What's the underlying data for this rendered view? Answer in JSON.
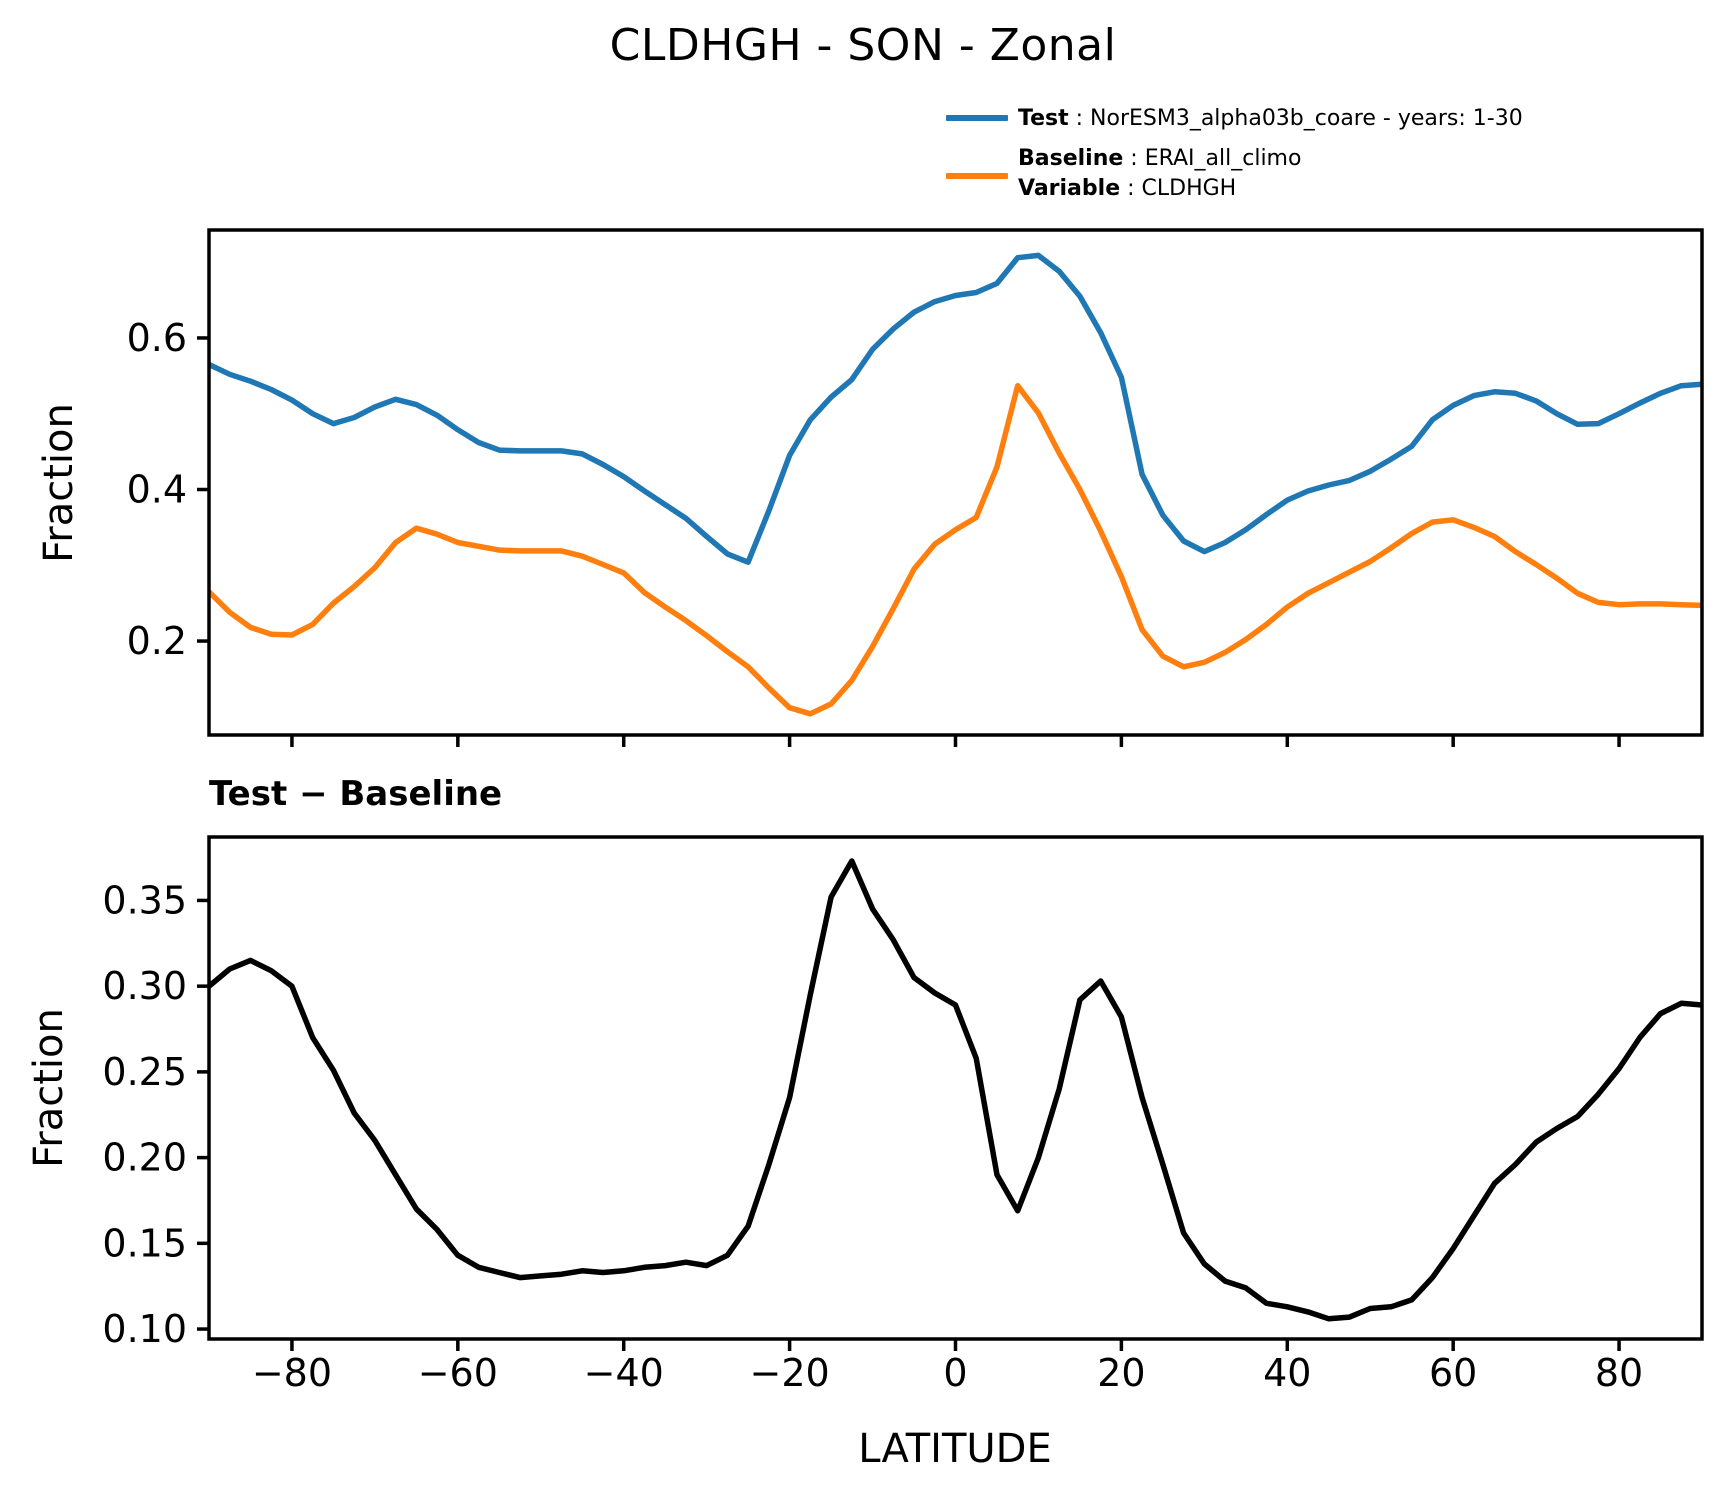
{
  "title": "CLDHGH - SON - Zonal",
  "subtitle": "Test − Baseline",
  "colors": {
    "test": "#1f77b4",
    "baseline": "#ff7f0e",
    "diff": "#000000"
  },
  "legend": {
    "test_label": "Test",
    "test_value": " : NorESM3_alpha03b_coare - years: 1-30",
    "baseline_label": "Baseline",
    "baseline_value": " : ERAI_all_climo",
    "variable_label": "Variable",
    "variable_value": " : CLDHGH"
  },
  "chart_data": [
    {
      "type": "line",
      "title": "CLDHGH - SON - Zonal",
      "xlabel": "",
      "ylabel": "Fraction",
      "xlim": [
        -90,
        90
      ],
      "ylim": [
        0.076,
        0.7425
      ],
      "grid": false,
      "legend_position": "top-right-figure",
      "yticks": [
        0.2,
        0.4,
        0.6
      ],
      "ytick_labels": [
        "0.2",
        "0.4",
        "0.6"
      ],
      "xticks": [
        -80,
        -60,
        -40,
        -20,
        0,
        20,
        40,
        60,
        80
      ],
      "xtick_labels": [],
      "x": [
        -90,
        -87.5,
        -85,
        -82.5,
        -80,
        -77.5,
        -75,
        -72.5,
        -70,
        -67.5,
        -65,
        -62.5,
        -60,
        -57.5,
        -55,
        -52.5,
        -50,
        -47.5,
        -45,
        -42.5,
        -40,
        -37.5,
        -35,
        -32.5,
        -30,
        -27.5,
        -25,
        -22.5,
        -20,
        -17.5,
        -15,
        -12.5,
        -10,
        -7.5,
        -5,
        -2.5,
        0,
        2.5,
        5,
        7.5,
        10,
        12.5,
        15,
        17.5,
        20,
        22.5,
        25,
        27.5,
        30,
        32.5,
        35,
        37.5,
        40,
        42.5,
        45,
        47.5,
        50,
        52.5,
        55,
        57.5,
        60,
        62.5,
        65,
        67.5,
        70,
        72.5,
        75,
        77.5,
        80,
        82.5,
        85,
        87.5,
        90
      ],
      "series": [
        {
          "name": "Test : NorESM3_alpha03b_coare - years: 1-30",
          "color": "#1f77b4",
          "values": [
            0.565,
            0.552,
            0.543,
            0.532,
            0.518,
            0.5,
            0.487,
            0.495,
            0.509,
            0.519,
            0.512,
            0.498,
            0.479,
            0.462,
            0.452,
            0.451,
            0.451,
            0.451,
            0.447,
            0.433,
            0.417,
            0.398,
            0.38,
            0.362,
            0.338,
            0.315,
            0.304,
            0.372,
            0.445,
            0.492,
            0.522,
            0.545,
            0.585,
            0.612,
            0.634,
            0.648,
            0.656,
            0.66,
            0.672,
            0.706,
            0.709,
            0.688,
            0.655,
            0.607,
            0.548,
            0.42,
            0.366,
            0.332,
            0.318,
            0.33,
            0.347,
            0.367,
            0.386,
            0.398,
            0.406,
            0.412,
            0.424,
            0.44,
            0.457,
            0.492,
            0.511,
            0.524,
            0.529,
            0.527,
            0.517,
            0.5,
            0.486,
            0.487,
            0.5,
            0.514,
            0.527,
            0.537,
            0.539
          ]
        },
        {
          "name": "Baseline : ERAI_all_climo  Variable : CLDHGH",
          "color": "#ff7f0e",
          "values": [
            0.265,
            0.238,
            0.218,
            0.209,
            0.208,
            0.222,
            0.25,
            0.272,
            0.297,
            0.33,
            0.349,
            0.341,
            0.33,
            0.325,
            0.32,
            0.319,
            0.319,
            0.319,
            0.312,
            0.301,
            0.29,
            0.264,
            0.245,
            0.227,
            0.207,
            0.186,
            0.166,
            0.138,
            0.112,
            0.104,
            0.117,
            0.148,
            0.193,
            0.243,
            0.295,
            0.328,
            0.347,
            0.363,
            0.43,
            0.537,
            0.501,
            0.448,
            0.4,
            0.345,
            0.285,
            0.215,
            0.18,
            0.166,
            0.172,
            0.185,
            0.202,
            0.222,
            0.245,
            0.263,
            0.277,
            0.291,
            0.305,
            0.323,
            0.342,
            0.357,
            0.36,
            0.35,
            0.338,
            0.318,
            0.301,
            0.283,
            0.263,
            0.251,
            0.248,
            0.249,
            0.249,
            0.248,
            0.247
          ]
        }
      ]
    },
    {
      "type": "line",
      "title": "Test − Baseline",
      "xlabel": "LATITUDE",
      "ylabel": "Fraction",
      "xlim": [
        -90,
        90
      ],
      "ylim": [
        0.0942,
        0.387
      ],
      "grid": false,
      "yticks": [
        0.1,
        0.15,
        0.2,
        0.25,
        0.3,
        0.35
      ],
      "ytick_labels": [
        "0.10",
        "0.15",
        "0.20",
        "0.25",
        "0.30",
        "0.35"
      ],
      "xticks": [
        -80,
        -60,
        -40,
        -20,
        0,
        20,
        40,
        60,
        80
      ],
      "xtick_labels": [
        "−80",
        "−60",
        "−40",
        "−20",
        "0",
        "20",
        "40",
        "60",
        "80"
      ],
      "x": [
        -90,
        -87.5,
        -85,
        -82.5,
        -80,
        -77.5,
        -75,
        -72.5,
        -70,
        -67.5,
        -65,
        -62.5,
        -60,
        -57.5,
        -55,
        -52.5,
        -50,
        -47.5,
        -45,
        -42.5,
        -40,
        -37.5,
        -35,
        -32.5,
        -30,
        -27.5,
        -25,
        -22.5,
        -20,
        -17.5,
        -15,
        -12.5,
        -10,
        -7.5,
        -5,
        -2.5,
        0,
        2.5,
        5,
        7.5,
        10,
        12.5,
        15,
        17.5,
        20,
        22.5,
        25,
        27.5,
        30,
        32.5,
        35,
        37.5,
        40,
        42.5,
        45,
        47.5,
        50,
        52.5,
        55,
        57.5,
        60,
        62.5,
        65,
        67.5,
        70,
        72.5,
        75,
        77.5,
        80,
        82.5,
        85,
        87.5,
        90
      ],
      "series": [
        {
          "name": "Test − Baseline",
          "color": "#000000",
          "values": [
            0.3,
            0.31,
            0.315,
            0.309,
            0.3,
            0.27,
            0.251,
            0.226,
            0.21,
            0.19,
            0.17,
            0.158,
            0.143,
            0.136,
            0.133,
            0.13,
            0.131,
            0.132,
            0.134,
            0.133,
            0.134,
            0.136,
            0.137,
            0.139,
            0.137,
            0.143,
            0.16,
            0.196,
            0.235,
            0.295,
            0.352,
            0.373,
            0.345,
            0.327,
            0.305,
            0.296,
            0.289,
            0.258,
            0.19,
            0.169,
            0.2,
            0.24,
            0.292,
            0.303,
            0.282,
            0.235,
            0.196,
            0.156,
            0.138,
            0.128,
            0.124,
            0.115,
            0.113,
            0.11,
            0.106,
            0.107,
            0.112,
            0.113,
            0.117,
            0.13,
            0.147,
            0.166,
            0.185,
            0.196,
            0.209,
            0.217,
            0.224,
            0.237,
            0.252,
            0.27,
            0.284,
            0.29,
            0.289
          ]
        }
      ]
    }
  ]
}
